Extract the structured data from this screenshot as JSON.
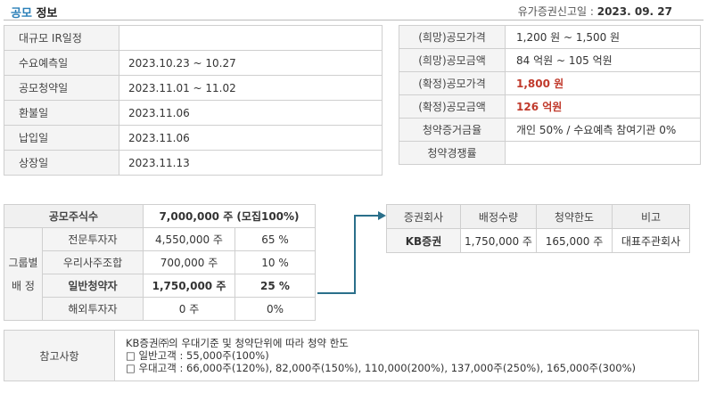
{
  "header": {
    "title_accent": "공모",
    "title_rest": " 정보",
    "filing_label": "유가증권신고일 : ",
    "filing_date": "2023. 09. 27"
  },
  "schedule": [
    {
      "label": "대규모 IR일정",
      "value": ""
    },
    {
      "label": "수요예측일",
      "value": "2023.10.23 ~ 10.27"
    },
    {
      "label": "공모청약일",
      "value": "2023.11.01 ~ 11.02"
    },
    {
      "label": "환불일",
      "value": "2023.11.06"
    },
    {
      "label": "납입일",
      "value": "2023.11.06"
    },
    {
      "label": "상장일",
      "value": "2023.11.13"
    }
  ],
  "pricing": [
    {
      "label": "(희망)공모가격",
      "value": "1,200 원 ~ 1,500 원"
    },
    {
      "label": "(희망)공모금액",
      "value": "84 억원   ~ 105 억원"
    },
    {
      "label": "(확정)공모가격",
      "value": "1,800 원"
    },
    {
      "label": "(확정)공모금액",
      "value": "126 억원"
    },
    {
      "label": "청약증거금율",
      "value": "개인 50% / 수요예측 참여기관 0%"
    },
    {
      "label": "청약경쟁률",
      "value": ""
    }
  ],
  "allocation": {
    "total_label": "공모주식수",
    "total_value": "7,000,000  주 (모집100%)",
    "group_label_1": "그룹별",
    "group_label_2": "배   정",
    "rows": [
      {
        "name": "전문투자자",
        "shares": "4,550,000 주",
        "pct": "65 %"
      },
      {
        "name": "우리사주조합",
        "shares": "700,000 주",
        "pct": "10 %"
      },
      {
        "name": "일반청약자",
        "shares": "1,750,000  주",
        "pct": "25 %"
      },
      {
        "name": "해외투자자",
        "shares": "0 주",
        "pct": "0%"
      }
    ]
  },
  "underwriter": {
    "headers": [
      "증권회사",
      "배정수량",
      "청약한도",
      "비고"
    ],
    "row": {
      "firm": "KB증권",
      "qty": "1,750,000 주",
      "limit": "165,000 주",
      "note": "대표주관회사"
    }
  },
  "reference": {
    "label": "참고사항",
    "lines": [
      "KB증권㈜의 우대기준 및 청약단위에 따라 청약 한도",
      "□ 일반고객 : 55,000주(100%)",
      "□ 우대고객 : 66,000주(120%), 82,000주(150%), 110,000(200%), 137,000주(250%), 165,000주(300%)"
    ]
  },
  "colors": {
    "accent": "#2a7fb8",
    "highlight_red": "#c0392b",
    "connector": "#2a6f8a"
  }
}
